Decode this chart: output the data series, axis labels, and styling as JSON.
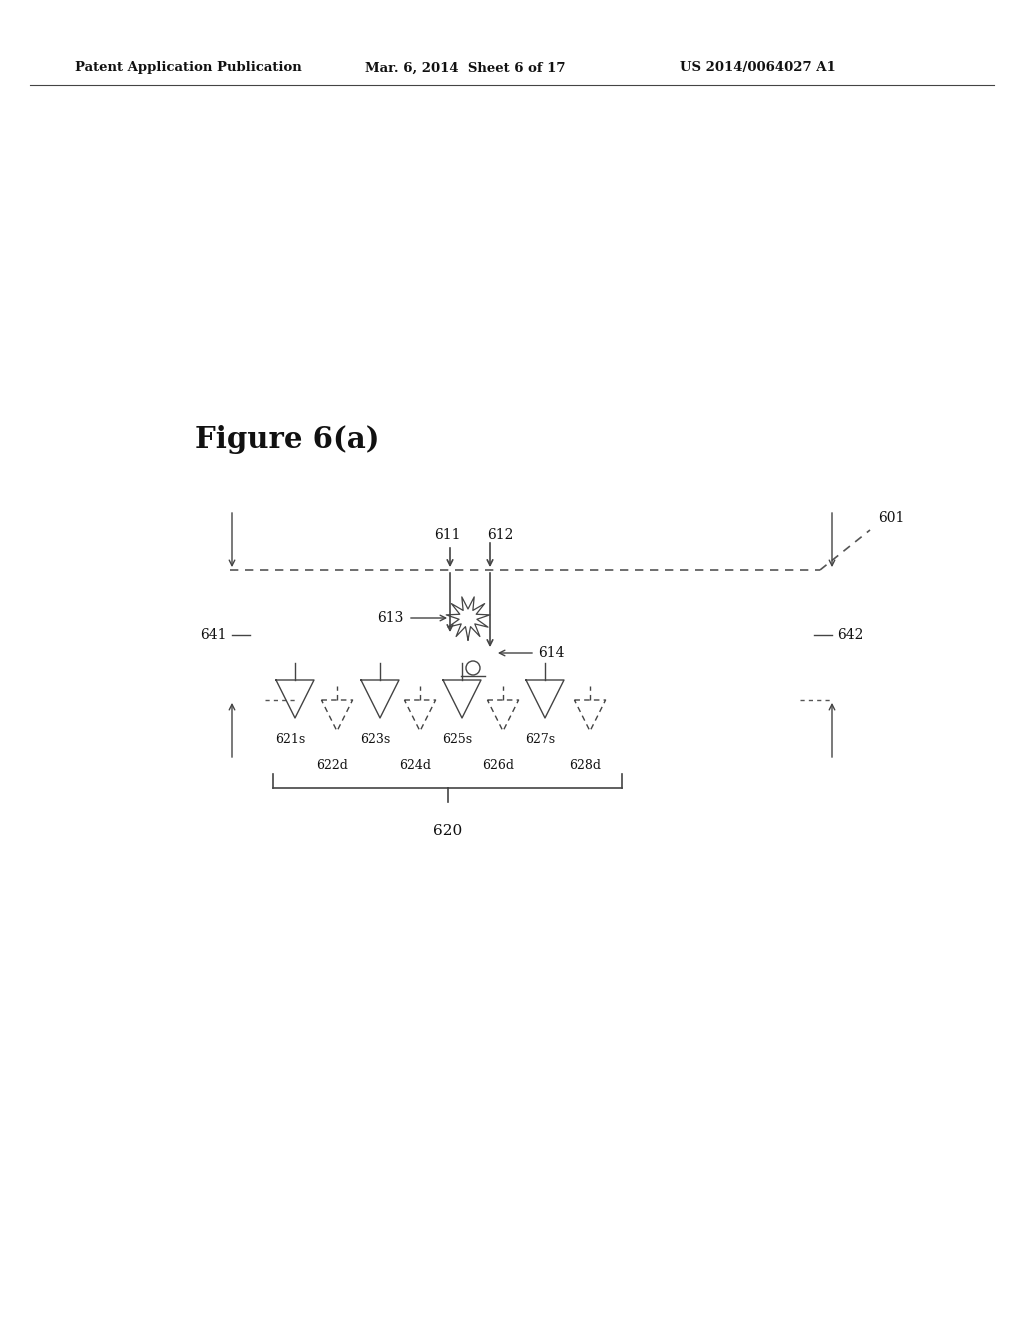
{
  "header_left": "Patent Application Publication",
  "header_mid": "Mar. 6, 2014  Sheet 6 of 17",
  "header_right": "US 2014/0064027 A1",
  "figure_label": "Figure 6(a)",
  "bg_color": "#ffffff",
  "text_color": "#111111",
  "line_color": "#444444",
  "dashed_color": "#555555"
}
